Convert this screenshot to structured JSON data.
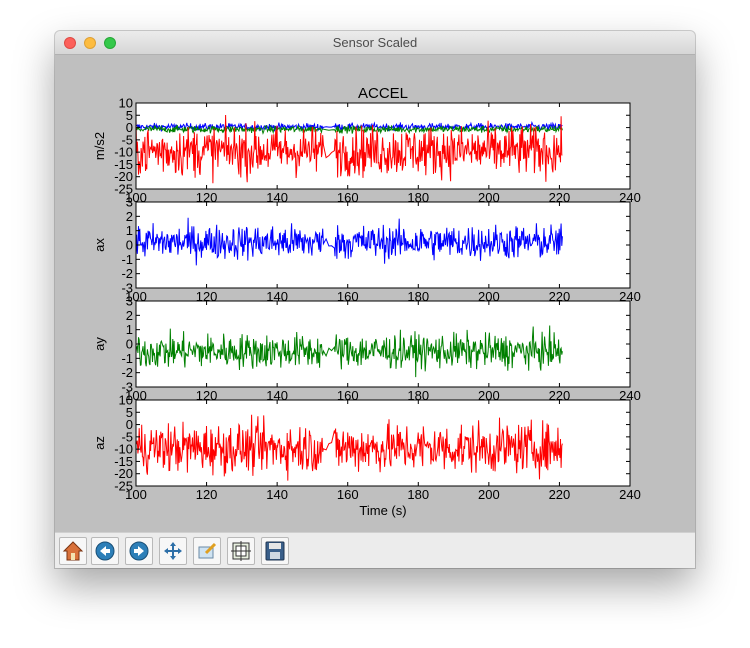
{
  "window": {
    "title": "Sensor Scaled"
  },
  "toolbar": {
    "buttons": [
      {
        "name": "home-button",
        "icon": "home-icon"
      },
      {
        "name": "back-button",
        "icon": "back-arrow-icon"
      },
      {
        "name": "forward-button",
        "icon": "forward-arrow-icon"
      },
      {
        "name": "pan-button",
        "icon": "move-cross-icon"
      },
      {
        "name": "zoom-button",
        "icon": "zoom-rect-icon"
      },
      {
        "name": "subplots-button",
        "icon": "subplots-config-icon"
      },
      {
        "name": "save-button",
        "icon": "floppy-disk-icon"
      }
    ]
  },
  "chart_data": [
    {
      "type": "line",
      "title": "ACCEL",
      "ylabel": "m/s2",
      "xlabel": "",
      "xlim": [
        100,
        240
      ],
      "ylim": [
        -25,
        10
      ],
      "xticks": [
        "100",
        "120",
        "140",
        "160",
        "180",
        "200",
        "220",
        "240"
      ],
      "yticks": [
        "10",
        "5",
        "0",
        "-5",
        "-10",
        "-15",
        "-20",
        "-25"
      ],
      "series": [
        {
          "color": "#0000ff",
          "mean": 0.3,
          "spread": 0.7,
          "x_start": 100,
          "x_end": 221,
          "gap": [
            153,
            156
          ]
        },
        {
          "color": "#008000",
          "mean": -0.7,
          "spread": 0.7,
          "x_start": 100,
          "x_end": 221,
          "gap": [
            153,
            156
          ]
        },
        {
          "color": "#ff0000",
          "mean": -9.5,
          "spread": 5,
          "x_start": 100,
          "x_end": 221,
          "gap": [
            153,
            156
          ]
        }
      ],
      "grid": false
    },
    {
      "type": "line",
      "title": "",
      "ylabel": "ax",
      "xlabel": "",
      "xlim": [
        100,
        240
      ],
      "ylim": [
        -3,
        3
      ],
      "xticks": [
        "100",
        "120",
        "140",
        "160",
        "180",
        "200",
        "220",
        "240"
      ],
      "yticks": [
        "3",
        "2",
        "1",
        "0",
        "-1",
        "-2",
        "-3"
      ],
      "series": [
        {
          "color": "#0000ff",
          "mean": 0.2,
          "spread": 0.6,
          "x_start": 100,
          "x_end": 221,
          "gap": [
            153,
            156
          ]
        }
      ],
      "grid": false
    },
    {
      "type": "line",
      "title": "",
      "ylabel": "ay",
      "xlabel": "",
      "xlim": [
        100,
        240
      ],
      "ylim": [
        -3,
        3
      ],
      "xticks": [
        "100",
        "120",
        "140",
        "160",
        "180",
        "200",
        "220",
        "240"
      ],
      "yticks": [
        "3",
        "2",
        "1",
        "0",
        "-1",
        "-2",
        "-3"
      ],
      "series": [
        {
          "color": "#008000",
          "mean": -0.5,
          "spread": 0.6,
          "x_start": 100,
          "x_end": 221,
          "gap": [
            153,
            156
          ]
        }
      ],
      "grid": false
    },
    {
      "type": "line",
      "title": "",
      "ylabel": "az",
      "xlabel": "Time (s)",
      "xlim": [
        100,
        240
      ],
      "ylim": [
        -25,
        10
      ],
      "xticks": [
        "100",
        "120",
        "140",
        "160",
        "180",
        "200",
        "220",
        "240"
      ],
      "yticks": [
        "10",
        "5",
        "0",
        "-5",
        "-10",
        "-15",
        "-20",
        "-25"
      ],
      "series": [
        {
          "color": "#ff0000",
          "mean": -9.5,
          "spread": 5,
          "x_start": 100,
          "x_end": 221,
          "gap": [
            153,
            156
          ]
        }
      ],
      "grid": false
    }
  ]
}
